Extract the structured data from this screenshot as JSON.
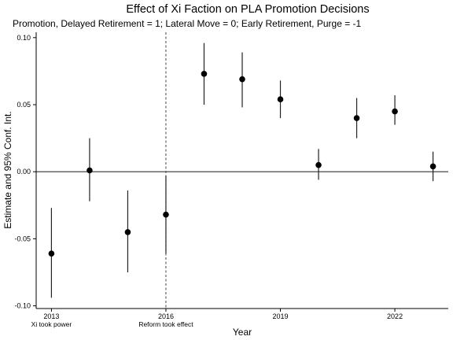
{
  "chart_data": {
    "type": "scatter",
    "title": "Effect of Xi Faction on PLA Promotion Decisions",
    "subtitle": "Promotion, Delayed Retirement = 1; Lateral Move = 0; Early Retirement, Purge = -1",
    "xlabel": "Year",
    "ylabel": "Estimate and 95% Conf. Int.",
    "xlim": [
      2012.6,
      2023.4
    ],
    "ylim": [
      -0.102,
      0.104
    ],
    "x_ticks": [
      2013,
      2016,
      2019,
      2022
    ],
    "x_tick_labels": [
      "2013",
      "2016",
      "2019",
      "2022"
    ],
    "y_ticks": [
      -0.1,
      -0.05,
      0.0,
      0.05,
      0.1
    ],
    "y_tick_labels": [
      "-0.10",
      "-0.05",
      "0.00",
      "0.05",
      "0.10"
    ],
    "reference_line_y": 0,
    "vertical_marker_x": 2016,
    "annotations": [
      {
        "x": 2013,
        "text": "Xi took power"
      },
      {
        "x": 2016,
        "text": "Reform took effect"
      }
    ],
    "grid": false,
    "points": [
      {
        "x": 2013,
        "y": -0.061,
        "lo": -0.094,
        "hi": -0.027
      },
      {
        "x": 2014,
        "y": 0.001,
        "lo": -0.022,
        "hi": 0.025
      },
      {
        "x": 2015,
        "y": -0.045,
        "lo": -0.075,
        "hi": -0.014
      },
      {
        "x": 2016,
        "y": -0.032,
        "lo": -0.061,
        "hi": -0.003
      },
      {
        "x": 2017,
        "y": 0.073,
        "lo": 0.05,
        "hi": 0.096
      },
      {
        "x": 2018,
        "y": 0.069,
        "lo": 0.048,
        "hi": 0.089
      },
      {
        "x": 2019,
        "y": 0.054,
        "lo": 0.04,
        "hi": 0.068
      },
      {
        "x": 2020,
        "y": 0.005,
        "lo": -0.006,
        "hi": 0.017
      },
      {
        "x": 2021,
        "y": 0.04,
        "lo": 0.025,
        "hi": 0.055
      },
      {
        "x": 2022,
        "y": 0.045,
        "lo": 0.035,
        "hi": 0.057
      },
      {
        "x": 2023,
        "y": 0.004,
        "lo": -0.007,
        "hi": 0.015
      }
    ],
    "colors": {
      "points": "#000000",
      "whiskers": "#222222",
      "axes": "#000000",
      "reference": "#333333",
      "marker_line": "#555555"
    }
  }
}
